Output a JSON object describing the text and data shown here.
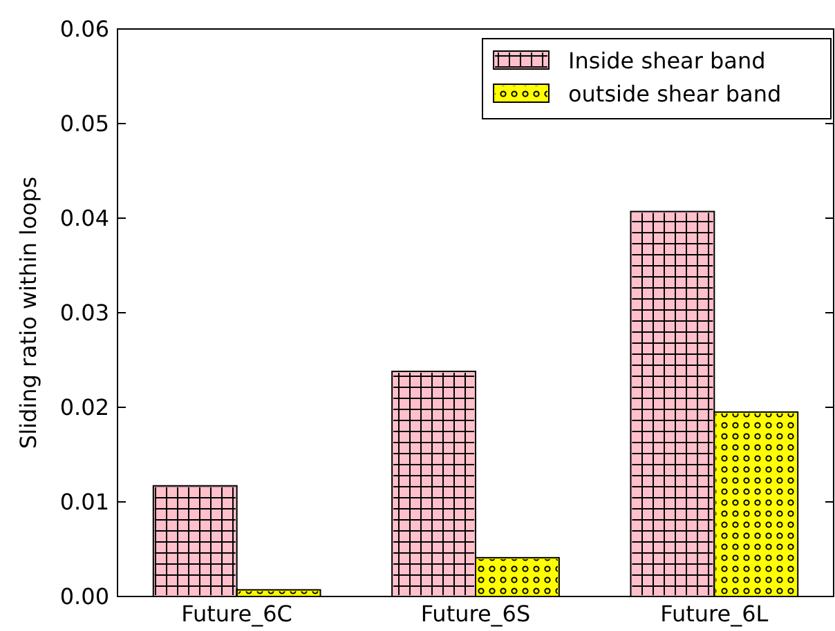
{
  "chart_data": {
    "type": "bar",
    "ylabel": "Sliding ratio within loops",
    "categories": [
      "Future_6C",
      "Future_6S",
      "Future_6L"
    ],
    "series": [
      {
        "name": "Inside shear band",
        "color": "#ffc0cb",
        "values": [
          0.0117,
          0.0238,
          0.0407
        ]
      },
      {
        "name": "outside shear band",
        "color": "#ffff00",
        "values": [
          0.0007,
          0.0041,
          0.0195
        ]
      }
    ],
    "ylim": [
      0,
      0.06
    ],
    "yticks": [
      {
        "value": 0,
        "label": "0.00"
      },
      {
        "value": 0.01,
        "label": "0.01"
      },
      {
        "value": 0.02,
        "label": "0.02"
      },
      {
        "value": 0.03,
        "label": "0.03"
      },
      {
        "value": 0.04,
        "label": "0.04"
      },
      {
        "value": 0.05,
        "label": "0.05"
      },
      {
        "value": 0.06,
        "label": "0.06"
      }
    ],
    "grid": false,
    "legend": "top right"
  }
}
